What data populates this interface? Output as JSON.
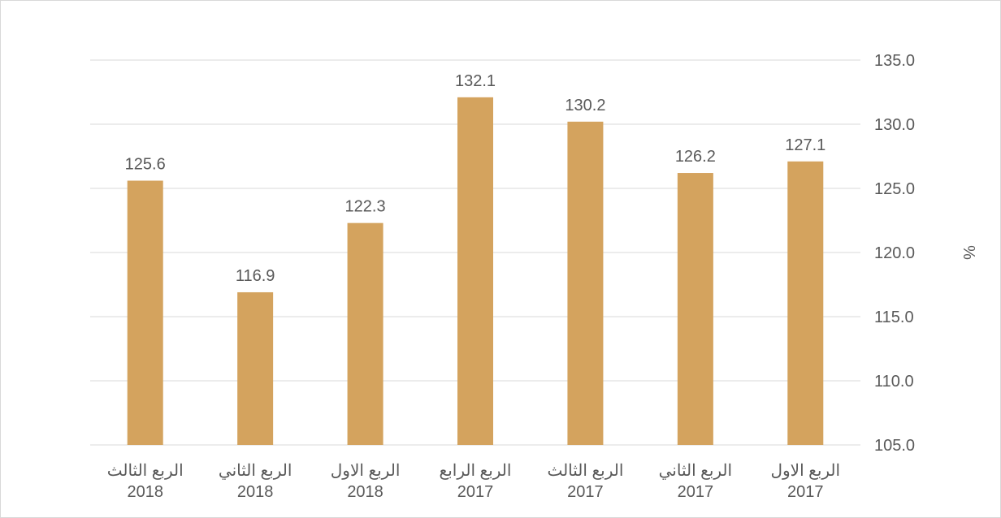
{
  "chart_data": {
    "type": "bar",
    "categories": [
      [
        "الربع الثالث",
        "2018"
      ],
      [
        "الربع الثاني",
        "2018"
      ],
      [
        "الربع الاول",
        "2018"
      ],
      [
        "الربع الرابع",
        "2017"
      ],
      [
        "الربع الثالث",
        "2017"
      ],
      [
        "الربع الثاني",
        "2017"
      ],
      [
        "الربع الاول",
        "2017"
      ]
    ],
    "values": [
      125.6,
      116.9,
      122.3,
      132.1,
      130.2,
      126.2,
      127.1
    ],
    "value_labels": [
      "125.6",
      "116.9",
      "122.3",
      "132.1",
      "130.2",
      "126.2",
      "127.1"
    ],
    "ylabel": "%",
    "ylim": [
      105,
      135
    ],
    "yticks": [
      105,
      110,
      115,
      120,
      125,
      130,
      135
    ],
    "ytick_labels": [
      "105.0",
      "110.0",
      "115.0",
      "120.0",
      "125.0",
      "130.0",
      "135.0"
    ],
    "y_axis_side": "right",
    "grid": true,
    "legend": "none",
    "colors": {
      "bar": "#d4a35e",
      "grid": "#d9d9d9",
      "text": "#595959"
    }
  }
}
